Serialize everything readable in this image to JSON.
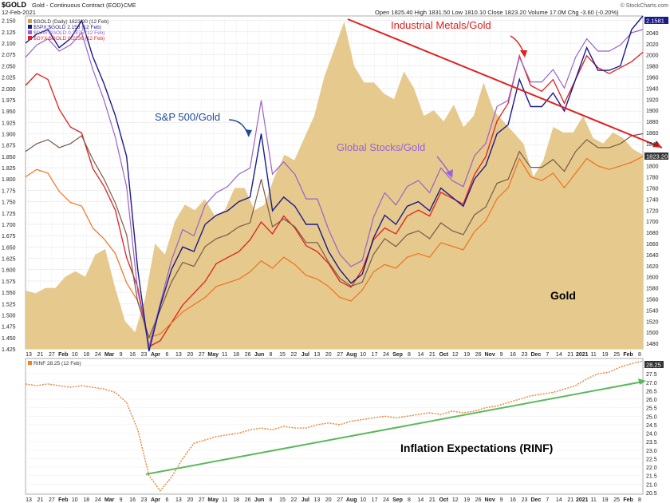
{
  "header": {
    "symbol": "$GOLD",
    "description": "Gold - Continuous Contract (EOD)",
    "exchange": "CME",
    "date": "12-Feb-2021",
    "quote": "Open 1825.40  High 1831.50  Low 1810.10  Close 1823.20  Volume 17.0M  Chg -3.60 (-0.20%)",
    "credit": "© StockCharts.com"
  },
  "legend_main": [
    {
      "text": "$GOLD (Daily) 1823.20 (12 Feb)",
      "color": "#c9a24a"
    },
    {
      "text": "$SPX:$GOLD 2.158 (12 Feb)",
      "color": "#1a1a8c"
    },
    {
      "text": "$DJW:$GOLD 0.2875 (12 Feb)",
      "color": "#9a62c8"
    },
    {
      "text": "$GYX:$GOLD 0.2236 (12 Feb)",
      "color": "#e02020"
    }
  ],
  "legend_lower": {
    "text": "RINF 28.25 (12 Feb)",
    "color": "#f08020"
  },
  "annotations": {
    "sp500": "S&P 500/Gold",
    "industrial": "Industrial Metals/Gold",
    "global": "Global Stocks/Gold",
    "gold": "Gold",
    "inflation": "Inflation Expectations (RINF)"
  },
  "colors": {
    "gold_area": "#e6c98c",
    "spx_gold": "#1a1a8c",
    "djw_gold": "#9a62c8",
    "gyx_gold": "#e02020",
    "global_overlay": "#7a5a4a",
    "industrial_overlay": "#f07020",
    "rinf": "#f08030",
    "trend_red": "#e02020",
    "trend_green": "#5cb85c",
    "sp_label": "#1f4a9a",
    "industrial_label": "#e02020",
    "global_label": "#9a62d8"
  },
  "chart_data": [
    {
      "type": "area+line",
      "y_left_ticks": [
        "2.150",
        "2.125",
        "2.100",
        "2.075",
        "2.050",
        "2.025",
        "2.000",
        "1.975",
        "1.950",
        "1.925",
        "1.900",
        "1.875",
        "1.850",
        "1.825",
        "1.800",
        "1.775",
        "1.750",
        "1.725",
        "1.700",
        "1.675",
        "1.650",
        "1.625",
        "1.600",
        "1.575",
        "1.550",
        "1.525",
        "1.500",
        "1.475",
        "1.450",
        "1.425"
      ],
      "y_right_ticks": [
        "2060",
        "2040",
        "2020",
        "2000",
        "1980",
        "1960",
        "1940",
        "1920",
        "1900",
        "1880",
        "1860",
        "1840",
        "1820",
        "1800",
        "1780",
        "1760",
        "1740",
        "1720",
        "1700",
        "1680",
        "1660",
        "1640",
        "1620",
        "1600",
        "1580",
        "1560",
        "1540",
        "1520",
        "1500",
        "1480"
      ],
      "ylim_left": [
        1.425,
        2.16
      ],
      "ylim_right": [
        1470,
        2070
      ],
      "x_ticks": [
        "13",
        "21",
        "27",
        "Feb",
        "10",
        "18",
        "24",
        "Mar",
        "9",
        "16",
        "23",
        "Apr",
        "6",
        "13",
        "20",
        "27",
        "May",
        "11",
        "18",
        "26",
        "Jun",
        "8",
        "15",
        "22",
        "Jul",
        "13",
        "20",
        "27",
        "Aug",
        "10",
        "17",
        "24",
        "Sep",
        "8",
        "14",
        "21",
        "Oct",
        "12",
        "19",
        "26",
        "Nov",
        "9",
        "16",
        "23",
        "Dec",
        "7",
        "14",
        "21",
        "2021",
        "11",
        "19",
        "25",
        "Feb",
        "8"
      ],
      "last_value_labels": {
        "gold": "1823.20",
        "spx_gold": "2.1581"
      },
      "gold": [
        1575,
        1570,
        1580,
        1580,
        1600,
        1610,
        1600,
        1640,
        1650,
        1580,
        1520,
        1500,
        1560,
        1660,
        1640,
        1700,
        1730,
        1720,
        1740,
        1710,
        1720,
        1760,
        1760,
        1720,
        1730,
        1780,
        1820,
        1810,
        1850,
        1890,
        1960,
        2010,
        2060,
        1980,
        1950,
        1950,
        1930,
        1920,
        1970,
        1940,
        1890,
        1900,
        1880,
        1910,
        1870,
        1890,
        1950,
        1900,
        1880,
        1860,
        1840,
        1780,
        1810,
        1870,
        1860,
        1860,
        1890,
        1850,
        1840,
        1860,
        1850,
        1830,
        1820
      ],
      "spx_gold": [
        2.1,
        2.12,
        2.13,
        2.09,
        2.11,
        2.15,
        2.07,
        2.01,
        1.94,
        1.85,
        1.6,
        1.42,
        1.52,
        1.6,
        1.65,
        1.64,
        1.7,
        1.72,
        1.73,
        1.75,
        1.76,
        1.9,
        1.73,
        1.76,
        1.74,
        1.7,
        1.7,
        1.64,
        1.6,
        1.57,
        1.59,
        1.67,
        1.72,
        1.7,
        1.74,
        1.75,
        1.73,
        1.78,
        1.76,
        1.74,
        1.8,
        1.83,
        1.9,
        1.92,
        2.02,
        1.96,
        1.96,
        1.99,
        1.95,
        2.02,
        2.09,
        2.04,
        2.04,
        2.05,
        2.13,
        2.16
      ],
      "djw_gold": [
        0.283,
        0.285,
        0.286,
        0.284,
        0.285,
        0.287,
        0.281,
        0.276,
        0.27,
        0.262,
        0.245,
        0.236,
        0.243,
        0.25,
        0.255,
        0.254,
        0.259,
        0.261,
        0.262,
        0.264,
        0.265,
        0.276,
        0.264,
        0.266,
        0.264,
        0.26,
        0.26,
        0.255,
        0.251,
        0.249,
        0.25,
        0.257,
        0.261,
        0.259,
        0.262,
        0.263,
        0.261,
        0.265,
        0.263,
        0.262,
        0.267,
        0.269,
        0.275,
        0.276,
        0.283,
        0.279,
        0.279,
        0.281,
        0.278,
        0.283,
        0.286,
        0.284,
        0.284,
        0.285,
        0.287,
        0.2875
      ],
      "gyx_gold": [
        0.218,
        0.22,
        0.219,
        0.214,
        0.211,
        0.21,
        0.204,
        0.201,
        0.197,
        0.189,
        0.184,
        0.174,
        0.175,
        0.178,
        0.181,
        0.183,
        0.185,
        0.188,
        0.189,
        0.19,
        0.192,
        0.195,
        0.193,
        0.196,
        0.194,
        0.191,
        0.19,
        0.188,
        0.185,
        0.184,
        0.187,
        0.192,
        0.194,
        0.193,
        0.196,
        0.197,
        0.196,
        0.2,
        0.199,
        0.198,
        0.203,
        0.206,
        0.212,
        0.215,
        0.223,
        0.218,
        0.217,
        0.219,
        0.215,
        0.219,
        0.223,
        0.221,
        0.22,
        0.221,
        0.222,
        0.2236
      ]
    },
    {
      "type": "line",
      "y_ticks": [
        "28.0",
        "27.5",
        "27.0",
        "26.5",
        "26.0",
        "25.5",
        "25.0",
        "24.5",
        "24.0",
        "23.5",
        "23.0",
        "22.5",
        "22.0",
        "21.5",
        "21.0",
        "20.5"
      ],
      "ylim": [
        20.4,
        28.4
      ],
      "last_value_label": "28.25",
      "rinf": [
        26.9,
        26.8,
        26.9,
        26.8,
        26.7,
        26.8,
        26.7,
        26.6,
        26.4,
        25.8,
        24.2,
        21.5,
        20.6,
        21.4,
        22.5,
        23.4,
        23.6,
        23.8,
        23.9,
        24.0,
        24.2,
        24.3,
        24.2,
        24.4,
        24.3,
        24.3,
        24.5,
        24.6,
        24.5,
        24.7,
        24.8,
        24.9,
        25.0,
        24.9,
        25.0,
        25.1,
        25.2,
        25.1,
        25.3,
        25.2,
        25.3,
        25.5,
        25.6,
        25.8,
        26.0,
        26.2,
        26.3,
        26.4,
        26.6,
        26.8,
        27.2,
        27.5,
        27.6,
        27.9,
        28.1,
        28.25
      ]
    }
  ]
}
